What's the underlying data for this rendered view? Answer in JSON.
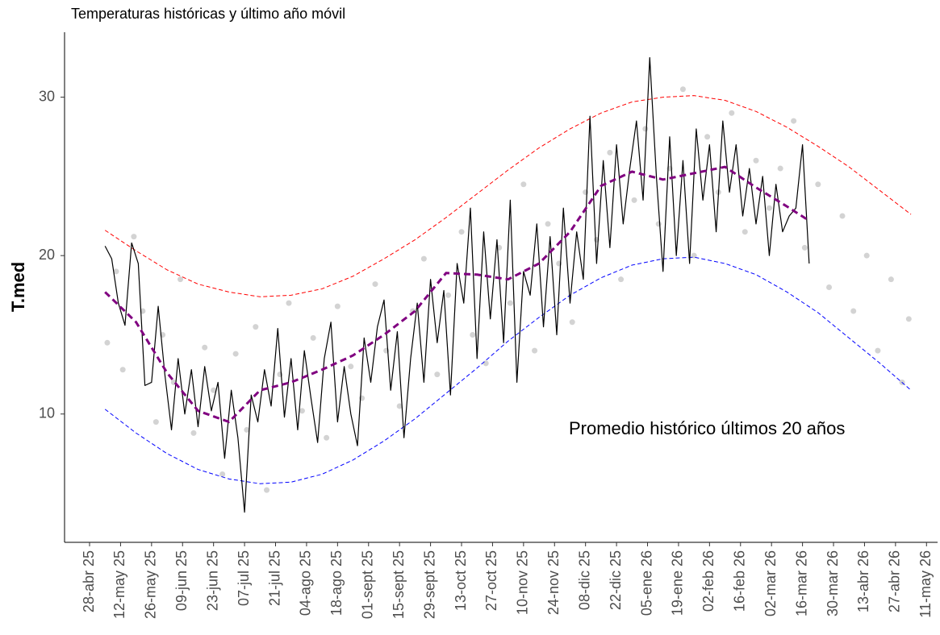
{
  "chart_data": {
    "type": "line",
    "title": "Temperaturas históricas y último año móvil",
    "ylabel": "T.med",
    "annotation": "Promedio histórico últimos 20 años",
    "xlim": [
      -11.3,
      383
    ],
    "ylim": [
      1.9,
      34.1
    ],
    "yticks": [
      10,
      20,
      30
    ],
    "xticks": [
      {
        "value": 0,
        "label": "28-abr 25"
      },
      {
        "value": 14,
        "label": "12-may 25"
      },
      {
        "value": 28,
        "label": "26-may 25"
      },
      {
        "value": 42,
        "label": "09-jun 25"
      },
      {
        "value": 56,
        "label": "23-jun 25"
      },
      {
        "value": 70,
        "label": "07-jul 25"
      },
      {
        "value": 84,
        "label": "21-jul 25"
      },
      {
        "value": 98,
        "label": "04-ago 25"
      },
      {
        "value": 112,
        "label": "18-ago 25"
      },
      {
        "value": 126,
        "label": "01-sept 25"
      },
      {
        "value": 140,
        "label": "15-sept 25"
      },
      {
        "value": 154,
        "label": "29-sept 25"
      },
      {
        "value": 168,
        "label": "13-oct 25"
      },
      {
        "value": 182,
        "label": "27-oct 25"
      },
      {
        "value": 196,
        "label": "10-nov 25"
      },
      {
        "value": 210,
        "label": "24-nov 25"
      },
      {
        "value": 224,
        "label": "08-dic 25"
      },
      {
        "value": 238,
        "label": "22-dic 25"
      },
      {
        "value": 252,
        "label": "05-ene 26"
      },
      {
        "value": 266,
        "label": "19-ene 26"
      },
      {
        "value": 280,
        "label": "02-feb 26"
      },
      {
        "value": 294,
        "label": "16-feb 26"
      },
      {
        "value": 308,
        "label": "02-mar 26"
      },
      {
        "value": 322,
        "label": "16-mar 26"
      },
      {
        "value": 336,
        "label": "30-mar 26"
      },
      {
        "value": 350,
        "label": "13-abr 26"
      },
      {
        "value": 364,
        "label": "27-abr 26"
      },
      {
        "value": 378,
        "label": "11-may 26"
      }
    ],
    "series": [
      {
        "type": "scatter",
        "color": "#c8c8c8",
        "x": [
          8,
          12,
          15,
          20,
          24,
          30,
          33,
          38,
          41,
          47,
          52,
          56,
          60,
          66,
          71,
          75,
          80,
          86,
          90,
          96,
          101,
          107,
          112,
          118,
          123,
          129,
          134,
          140,
          146,
          151,
          157,
          162,
          168,
          173,
          179,
          185,
          190,
          196,
          201,
          207,
          212,
          218,
          224,
          229,
          235,
          240,
          246,
          251,
          257,
          262,
          268,
          273,
          279,
          284,
          290,
          296,
          301,
          307,
          312,
          318,
          323,
          329,
          334,
          340,
          345,
          351,
          356,
          362,
          367,
          370
        ],
        "values": [
          14.5,
          19.0,
          12.8,
          21.2,
          16.5,
          9.5,
          15.0,
          12.0,
          18.5,
          8.8,
          14.2,
          11.5,
          6.2,
          13.8,
          9.0,
          15.5,
          5.2,
          12.5,
          17.0,
          10.2,
          14.8,
          8.5,
          16.8,
          13.0,
          11.0,
          18.2,
          14.0,
          10.5,
          16.5,
          19.8,
          12.5,
          17.5,
          21.5,
          15.0,
          13.2,
          20.5,
          17.0,
          24.5,
          14.0,
          22.0,
          19.5,
          15.8,
          24.0,
          21.0,
          26.5,
          18.5,
          23.5,
          28.0,
          22.0,
          25.5,
          30.5,
          20.0,
          27.5,
          24.0,
          29.0,
          21.5,
          26.0,
          23.0,
          25.5,
          28.5,
          20.5,
          24.5,
          18.0,
          22.5,
          16.5,
          20.0,
          14.0,
          18.5,
          12.0,
          16.0
        ]
      },
      {
        "type": "line",
        "color": "#ff0000",
        "dash": true,
        "width": 1,
        "x": [
          7,
          21,
          35,
          49,
          63,
          77,
          91,
          105,
          119,
          133,
          147,
          161,
          175,
          189,
          203,
          217,
          231,
          245,
          259,
          273,
          287,
          301,
          315,
          329,
          343,
          357,
          371
        ],
        "values": [
          21.6,
          20.3,
          19.1,
          18.2,
          17.7,
          17.4,
          17.5,
          17.9,
          18.7,
          19.8,
          21.0,
          22.4,
          23.9,
          25.4,
          26.8,
          28.0,
          29.0,
          29.7,
          30.0,
          30.1,
          29.8,
          29.1,
          28.1,
          26.9,
          25.6,
          24.1,
          22.6
        ]
      },
      {
        "type": "line",
        "color": "#0000ff",
        "dash": true,
        "width": 1,
        "x": [
          7,
          21,
          35,
          49,
          63,
          77,
          91,
          105,
          119,
          133,
          147,
          161,
          175,
          189,
          203,
          217,
          231,
          245,
          259,
          273,
          287,
          301,
          315,
          329,
          343,
          357,
          371
        ],
        "values": [
          10.3,
          8.8,
          7.5,
          6.5,
          5.9,
          5.6,
          5.7,
          6.2,
          7.1,
          8.3,
          9.7,
          11.3,
          12.9,
          14.6,
          16.1,
          17.5,
          18.6,
          19.4,
          19.8,
          19.9,
          19.5,
          18.8,
          17.7,
          16.4,
          14.8,
          13.2,
          11.5
        ]
      },
      {
        "type": "line",
        "color": "#000000",
        "dash": false,
        "width": 1.2,
        "x": [
          7,
          10,
          13,
          16,
          19,
          22,
          25,
          28,
          31,
          34,
          37,
          40,
          43,
          46,
          49,
          52,
          55,
          58,
          61,
          64,
          67,
          70,
          73,
          76,
          79,
          82,
          85,
          88,
          91,
          94,
          97,
          100,
          103,
          106,
          109,
          112,
          115,
          118,
          121,
          124,
          127,
          130,
          133,
          136,
          139,
          142,
          145,
          148,
          151,
          154,
          157,
          160,
          163,
          166,
          169,
          172,
          175,
          178,
          181,
          184,
          187,
          190,
          193,
          196,
          199,
          202,
          205,
          208,
          211,
          214,
          217,
          220,
          223,
          226,
          229,
          232,
          235,
          238,
          241,
          244,
          247,
          250,
          253,
          256,
          259,
          262,
          265,
          268,
          271,
          274,
          277,
          280,
          283,
          286,
          289,
          292,
          295,
          298,
          301,
          304,
          307,
          310,
          313,
          316,
          319,
          322,
          325
        ],
        "values": [
          20.6,
          19.8,
          17.0,
          15.6,
          20.8,
          19.5,
          11.8,
          12.0,
          16.8,
          12.5,
          9.0,
          13.5,
          10.0,
          12.8,
          9.2,
          13.0,
          10.2,
          12.0,
          7.2,
          11.5,
          8.5,
          3.8,
          11.2,
          9.5,
          12.8,
          10.5,
          15.4,
          9.8,
          13.5,
          9.0,
          14.0,
          11.0,
          8.2,
          13.5,
          15.8,
          9.5,
          13.0,
          10.0,
          8.0,
          14.8,
          12.0,
          15.5,
          17.2,
          11.5,
          15.2,
          8.5,
          13.5,
          17.0,
          12.0,
          18.5,
          14.5,
          17.8,
          11.2,
          19.5,
          17.0,
          23.0,
          13.5,
          21.5,
          16.0,
          21.0,
          14.5,
          23.5,
          12.0,
          19.0,
          17.5,
          22.0,
          15.5,
          21.2,
          15.0,
          23.0,
          17.0,
          21.5,
          18.5,
          28.8,
          19.5,
          26.0,
          20.5,
          27.0,
          22.0,
          25.5,
          28.5,
          23.5,
          32.5,
          25.0,
          19.0,
          27.5,
          20.0,
          26.0,
          19.5,
          28.0,
          23.5,
          27.0,
          21.5,
          28.5,
          24.0,
          27.0,
          22.5,
          25.5,
          22.0,
          25.0,
          20.0,
          24.5,
          21.5,
          22.5,
          23.0,
          27.0,
          19.5
        ]
      },
      {
        "type": "line",
        "color": "#800080",
        "dash": true,
        "width": 3,
        "x": [
          7,
          21,
          35,
          49,
          63,
          77,
          91,
          105,
          119,
          133,
          147,
          161,
          175,
          189,
          203,
          217,
          231,
          245,
          259,
          273,
          287,
          301,
          315,
          325
        ],
        "values": [
          17.7,
          15.8,
          12.6,
          10.2,
          9.5,
          11.5,
          12.0,
          12.8,
          13.7,
          15.0,
          16.5,
          18.9,
          18.8,
          18.5,
          19.5,
          21.5,
          24.4,
          25.3,
          24.8,
          25.2,
          25.6,
          24.3,
          23.1,
          22.2
        ]
      }
    ]
  }
}
